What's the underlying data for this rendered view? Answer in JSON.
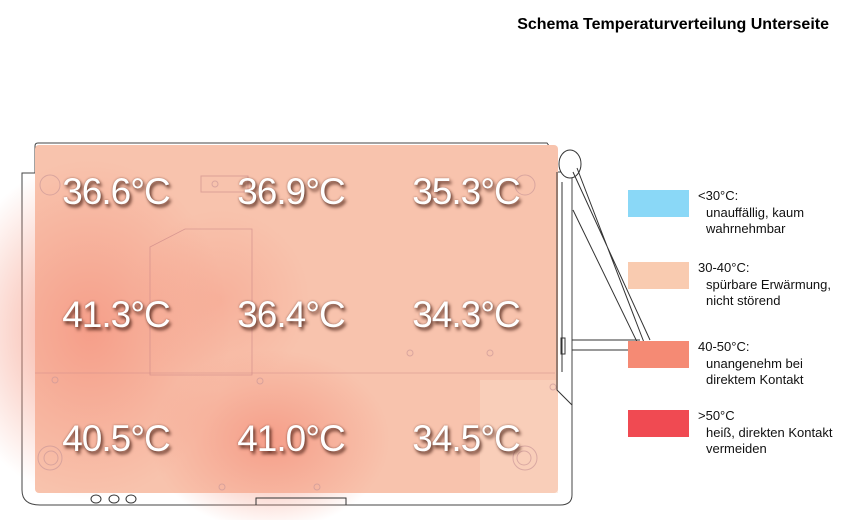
{
  "title": "Schema Temperaturverteilung Unterseite",
  "temperatures": [
    [
      "36.6°C",
      "36.9°C",
      "35.3°C"
    ],
    [
      "41.3°C",
      "36.4°C",
      "34.3°C"
    ],
    [
      "40.5°C",
      "41.0°C",
      "34.5°C"
    ]
  ],
  "legend": [
    {
      "range": "<30°C:",
      "desc1": "unauffällig, kaum",
      "desc2": "wahrnehmbar",
      "color": "#8ad8f7"
    },
    {
      "range": "30-40°C:",
      "desc1": "spürbare Erwärmung,",
      "desc2": "nicht störend",
      "color": "#f9cbb0"
    },
    {
      "range": "40-50°C:",
      "desc1": "unangenehm bei",
      "desc2": "direktem Kontakt",
      "color": "#f58a74"
    },
    {
      "range": ">50°C",
      "desc1": "heiß, direkten Kontakt",
      "desc2": "vermeiden",
      "color": "#f04a52"
    }
  ]
}
